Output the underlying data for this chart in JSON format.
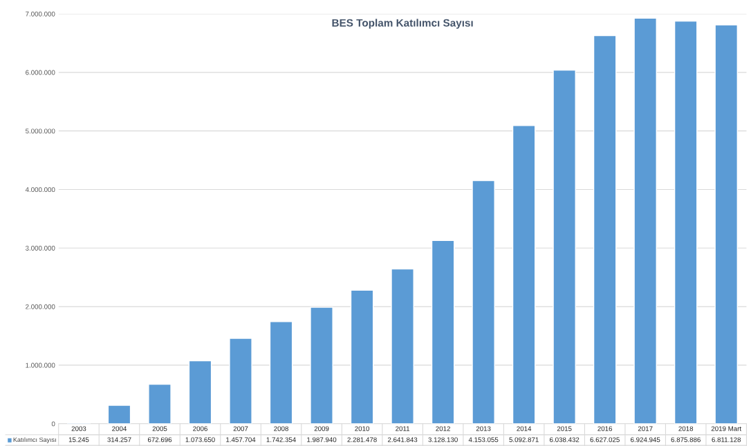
{
  "chart_data": {
    "type": "bar",
    "title": "BES Toplam Katılımcı Sayısı",
    "categories": [
      "2003",
      "2004",
      "2005",
      "2006",
      "2007",
      "2008",
      "2009",
      "2010",
      "2011",
      "2012",
      "2013",
      "2014",
      "2015",
      "2016",
      "2017",
      "2018",
      "2019 Mart"
    ],
    "series": [
      {
        "name": "Katılımcı Sayısı",
        "color": "#5b9bd5",
        "values": [
          15245,
          314257,
          672696,
          1073650,
          1457704,
          1742354,
          1987940,
          2281478,
          2641843,
          3128130,
          4153055,
          5092871,
          6038432,
          6627025,
          6924945,
          6875886,
          6811128
        ],
        "value_labels": [
          "15.245",
          "314.257",
          "672.696",
          "1.073.650",
          "1.457.704",
          "1.742.354",
          "1.987.940",
          "2.281.478",
          "2.641.843",
          "3.128.130",
          "4.153.055",
          "5.092.871",
          "6.038.432",
          "6.627.025",
          "6.924.945",
          "6.875.886",
          "6.811.128"
        ]
      }
    ],
    "ylim": [
      0,
      7000000
    ],
    "yticks": [
      {
        "value": 0,
        "label": "0"
      },
      {
        "value": 1000000,
        "label": "1.000.000"
      },
      {
        "value": 2000000,
        "label": "2.000.000"
      },
      {
        "value": 3000000,
        "label": "3.000.000"
      },
      {
        "value": 4000000,
        "label": "4.000.000"
      },
      {
        "value": 5000000,
        "label": "5.000.000"
      },
      {
        "value": 6000000,
        "label": "6.000.000"
      },
      {
        "value": 7000000,
        "label": "7.000.000"
      }
    ],
    "grid": "y"
  }
}
